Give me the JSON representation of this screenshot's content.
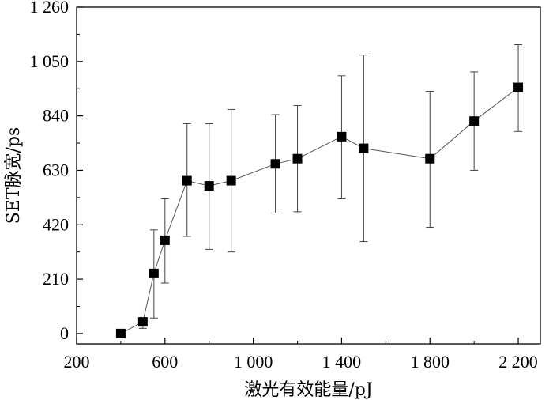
{
  "chart_data": {
    "type": "scatter",
    "title": "",
    "xlabel": "激光有效能量/pJ",
    "ylabel": "SET脉宽/ps",
    "xlim": [
      200,
      2300
    ],
    "ylim": [
      -40,
      1260
    ],
    "x_ticks": [
      200,
      600,
      1000,
      1400,
      1800,
      2200
    ],
    "x_tick_labels": [
      "200",
      "600",
      "1 000",
      "1 400",
      "1 800",
      "2 200"
    ],
    "y_ticks": [
      0,
      210,
      420,
      630,
      840,
      1050,
      1260
    ],
    "y_tick_labels": [
      "0",
      "210",
      "420",
      "630",
      "840",
      "1 050",
      "1 260"
    ],
    "grid": false,
    "legend": "none",
    "series": [
      {
        "marker": "square",
        "color": "#000000",
        "line": "connected",
        "points": [
          {
            "x": 400,
            "y": 0,
            "err_low": 0,
            "err_high": 0
          },
          {
            "x": 500,
            "y": 45,
            "err_low": 20,
            "err_high": 60
          },
          {
            "x": 550,
            "y": 232,
            "err_low": 60,
            "err_high": 400
          },
          {
            "x": 600,
            "y": 360,
            "err_low": 195,
            "err_high": 520
          },
          {
            "x": 700,
            "y": 590,
            "err_low": 375,
            "err_high": 810
          },
          {
            "x": 800,
            "y": 570,
            "err_low": 325,
            "err_high": 810
          },
          {
            "x": 900,
            "y": 590,
            "err_low": 315,
            "err_high": 865
          },
          {
            "x": 1100,
            "y": 655,
            "err_low": 465,
            "err_high": 845
          },
          {
            "x": 1200,
            "y": 675,
            "err_low": 470,
            "err_high": 880
          },
          {
            "x": 1400,
            "y": 760,
            "err_low": 520,
            "err_high": 995
          },
          {
            "x": 1500,
            "y": 715,
            "err_low": 355,
            "err_high": 1075
          },
          {
            "x": 1800,
            "y": 675,
            "err_low": 410,
            "err_high": 935
          },
          {
            "x": 2000,
            "y": 820,
            "err_low": 630,
            "err_high": 1010
          },
          {
            "x": 2200,
            "y": 950,
            "err_low": 780,
            "err_high": 1115
          }
        ]
      }
    ]
  }
}
